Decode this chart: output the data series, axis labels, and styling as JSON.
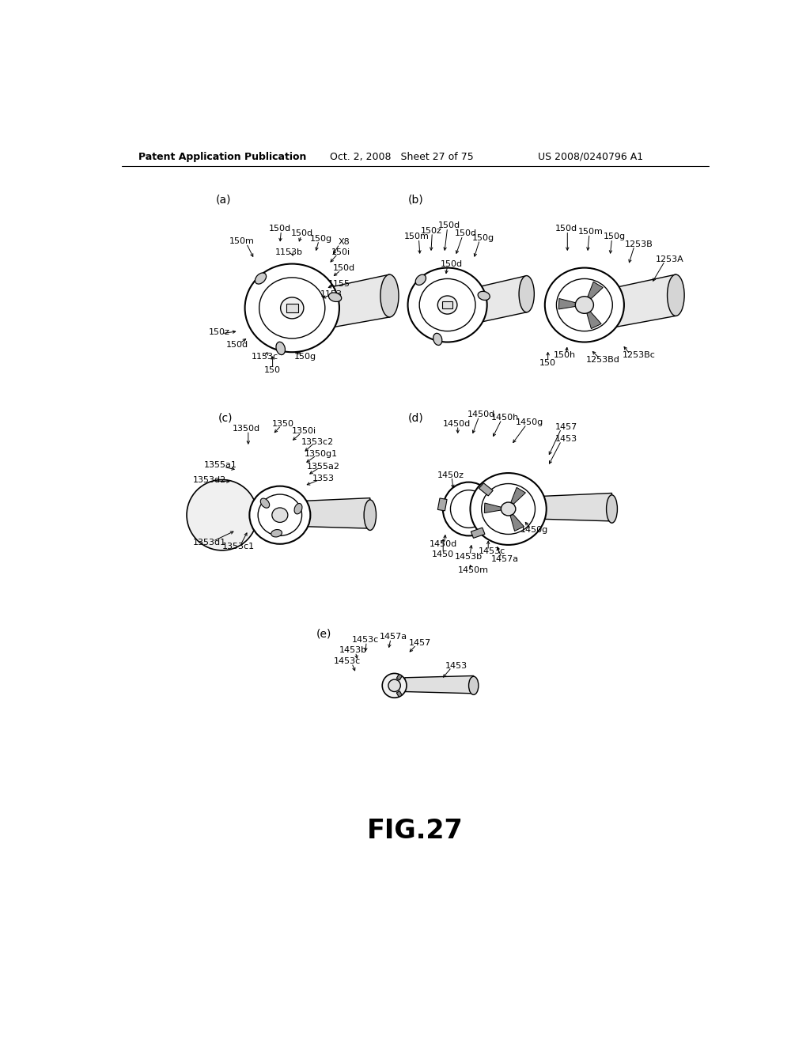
{
  "header_left": "Patent Application Publication",
  "header_mid": "Oct. 2, 2008   Sheet 27 of 75",
  "header_right": "US 2008/0240796 A1",
  "fig_label": "FIG.27",
  "bg_color": "#ffffff"
}
